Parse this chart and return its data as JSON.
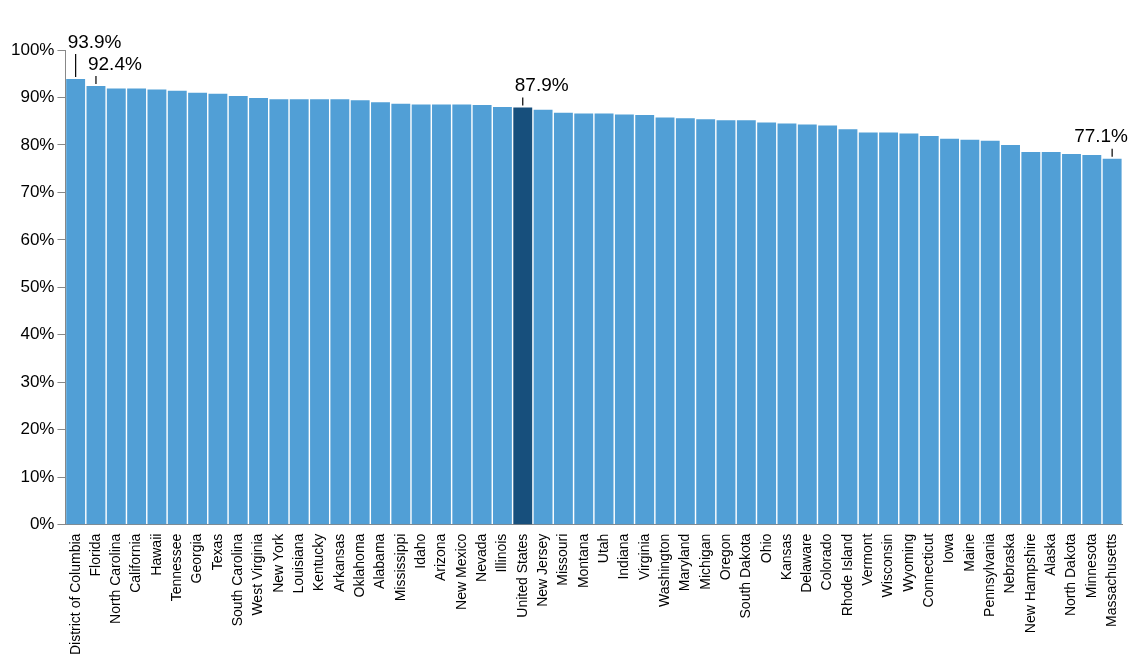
{
  "chart_data": {
    "type": "bar",
    "categories": [
      "District of Columbia",
      "Florida",
      "North Carolina",
      "California",
      "Hawaii",
      "Tennessee",
      "Georgia",
      "Texas",
      "South Carolina",
      "West Virginia",
      "New York",
      "Louisiana",
      "Kentucky",
      "Arkansas",
      "Oklahoma",
      "Alabama",
      "Mississippi",
      "Idaho",
      "Arizona",
      "New Mexico",
      "Nevada",
      "Illinois",
      "United States",
      "New Jersey",
      "Missouri",
      "Montana",
      "Utah",
      "Indiana",
      "Virginia",
      "Washington",
      "Maryland",
      "Michigan",
      "Oregon",
      "South Dakota",
      "Ohio",
      "Kansas",
      "Delaware",
      "Colorado",
      "Rhode Island",
      "Vermont",
      "Wisconsin",
      "Wyoming",
      "Connecticut",
      "Iowa",
      "Maine",
      "Pennsylvania",
      "Nebraska",
      "New Hampshire",
      "Alaska",
      "North Dakota",
      "Minnesota",
      "Massachusetts"
    ],
    "values": [
      93.9,
      92.4,
      91.9,
      91.9,
      91.7,
      91.4,
      91.0,
      90.8,
      90.3,
      89.9,
      89.6,
      89.6,
      89.6,
      89.6,
      89.4,
      89.0,
      88.7,
      88.5,
      88.5,
      88.5,
      88.4,
      88.0,
      87.9,
      87.4,
      86.8,
      86.6,
      86.6,
      86.4,
      86.3,
      85.8,
      85.6,
      85.4,
      85.2,
      85.2,
      84.7,
      84.5,
      84.3,
      84.1,
      83.3,
      82.6,
      82.6,
      82.4,
      81.9,
      81.3,
      81.1,
      80.9,
      80.0,
      78.5,
      78.5,
      78.1,
      77.9,
      77.1
    ],
    "colors": [
      "#519fd6",
      "#519fd6",
      "#519fd6",
      "#519fd6",
      "#519fd6",
      "#519fd6",
      "#519fd6",
      "#519fd6",
      "#519fd6",
      "#519fd6",
      "#519fd6",
      "#519fd6",
      "#519fd6",
      "#519fd6",
      "#519fd6",
      "#519fd6",
      "#519fd6",
      "#519fd6",
      "#519fd6",
      "#519fd6",
      "#519fd6",
      "#519fd6",
      "#174f7c",
      "#519fd6",
      "#519fd6",
      "#519fd6",
      "#519fd6",
      "#519fd6",
      "#519fd6",
      "#519fd6",
      "#519fd6",
      "#519fd6",
      "#519fd6",
      "#519fd6",
      "#519fd6",
      "#519fd6",
      "#519fd6",
      "#519fd6",
      "#519fd6",
      "#519fd6",
      "#519fd6",
      "#519fd6",
      "#519fd6",
      "#519fd6",
      "#519fd6",
      "#519fd6",
      "#519fd6",
      "#519fd6",
      "#519fd6",
      "#519fd6",
      "#519fd6",
      "#519fd6"
    ],
    "ylim": [
      0,
      100
    ],
    "yticks": [
      {
        "value": 0,
        "label": "0%"
      },
      {
        "value": 10,
        "label": "10%"
      },
      {
        "value": 20,
        "label": "20%"
      },
      {
        "value": 30,
        "label": "30%"
      },
      {
        "value": 40,
        "label": "40%"
      },
      {
        "value": 50,
        "label": "50%"
      },
      {
        "value": 60,
        "label": "60%"
      },
      {
        "value": 70,
        "label": "70%"
      },
      {
        "value": 80,
        "label": "80%"
      },
      {
        "value": 90,
        "label": "90%"
      },
      {
        "value": 100,
        "label": "100%"
      }
    ],
    "annotations": [
      {
        "text": "93.9%",
        "x": "District of Columbia",
        "y": 93.9
      },
      {
        "text": "92.4%",
        "x": "Florida",
        "y": 92.4
      },
      {
        "text": "87.9%",
        "x": "United States",
        "y": 87.9
      },
      {
        "text": "77.1%",
        "x": "Massachusetts",
        "y": 77.1
      }
    ],
    "grid": false,
    "legend": false
  }
}
